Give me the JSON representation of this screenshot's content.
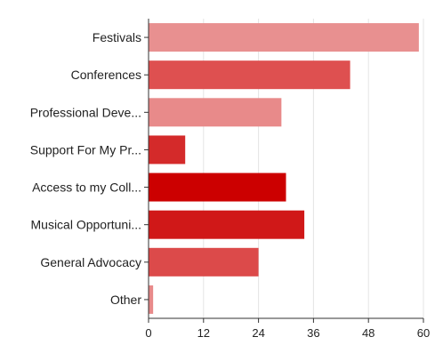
{
  "chart_data": {
    "type": "bar",
    "orientation": "horizontal",
    "categories": [
      "Festivals",
      "Conferences",
      "Professional Deve...",
      "Support For My Pr...",
      "Access to my Coll...",
      "Musical Opportuni...",
      "General Advocacy",
      "Other"
    ],
    "values": [
      59,
      44,
      29,
      8,
      30,
      34,
      24,
      1
    ],
    "bar_colors": [
      "#e89090",
      "#de5050",
      "#e88a8a",
      "#d42a2a",
      "#cc0000",
      "#d01818",
      "#dc4a4a",
      "#e88a8a"
    ],
    "xlim": [
      0,
      60
    ],
    "xticks": [
      "0",
      "12",
      "24",
      "36",
      "48",
      "60"
    ],
    "grid": true,
    "legend": "none",
    "axis_color": "#333333",
    "grid_color": "#e4e4e4"
  }
}
